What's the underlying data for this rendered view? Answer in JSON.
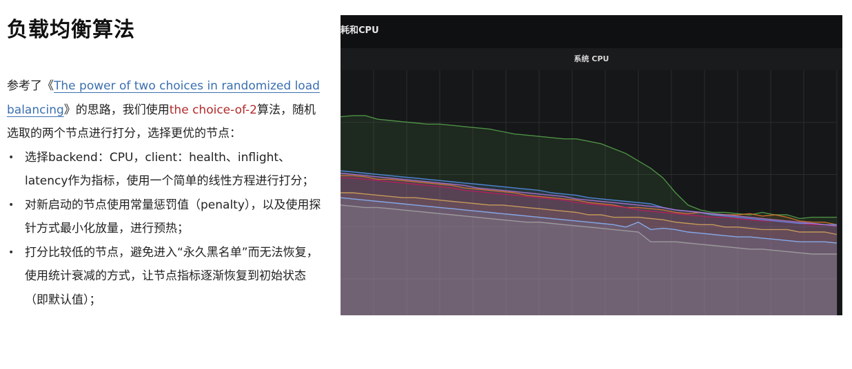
{
  "slide": {
    "title": "负载均衡算法",
    "intro": {
      "prefix": "参考了《",
      "link_text": "The power of two choices in randomized load balancing",
      "after_link": "》的思路，我们使用",
      "highlight": "the choice-of-2",
      "suffix": "算法，随机选取的两个节点进行打分，选择更优的节点："
    },
    "bullets": [
      "选择backend：CPU，client：health、inflight、latency作为指标，使用一个简单的线性方程进行打分；",
      "对新启动的节点使用常量惩罚值（penalty），以及使用探针方式最小化放量，进行预热；",
      "打分比较低的节点，避免进入“永久黑名单”而无法恢复，使用统计衰减的方式，让节点指标逐渐恢复到初始状态（即默认值）；"
    ]
  },
  "screenshot": {
    "panel_title": "耗和CPU",
    "chart_title": "系统 CPU"
  },
  "colors": {
    "link": "#3a6fb0",
    "highlight": "#b22a2a",
    "dashboard_bg": "#161719"
  },
  "chart_data": {
    "type": "line",
    "title": "系统 CPU",
    "xlabel": "",
    "ylabel": "",
    "grid": true,
    "ylim": [
      0,
      100
    ],
    "x": [
      0,
      1,
      2,
      3,
      4,
      5,
      6,
      7,
      8,
      9,
      10,
      11,
      12,
      13,
      14,
      15,
      16,
      17,
      18,
      19,
      20,
      21,
      22,
      23,
      24,
      25,
      26,
      27,
      28,
      29,
      30,
      31,
      32,
      33,
      34,
      35,
      36,
      37,
      38,
      39,
      40
    ],
    "series": [
      {
        "color": "#56a64b",
        "values": [
          81,
          81.5,
          81.5,
          80,
          79.5,
          79,
          78.5,
          78,
          78,
          77.5,
          77,
          76.5,
          76,
          75,
          74,
          73.5,
          73,
          72.5,
          72,
          72,
          71,
          70,
          68,
          66,
          63,
          60,
          56,
          50,
          45,
          43,
          42,
          42,
          41.5,
          41,
          42,
          41,
          41,
          39.5,
          40,
          40,
          40
        ]
      },
      {
        "color": "#d6a85a",
        "values": [
          50,
          50,
          49.5,
          49,
          48.5,
          48,
          48,
          47.5,
          47,
          46.5,
          46,
          45.5,
          45,
          45,
          44.5,
          44,
          43.5,
          43,
          42.5,
          42,
          41,
          41,
          40,
          40,
          40,
          39.5,
          39,
          38,
          37.5,
          37,
          37,
          36,
          36,
          35.5,
          35,
          35,
          35,
          34,
          34,
          34,
          33
        ]
      },
      {
        "color": "#e0752d",
        "values": [
          57,
          57,
          56.5,
          55.5,
          55.5,
          55,
          54.5,
          54,
          53.5,
          53,
          52,
          51.5,
          51,
          50.5,
          50,
          49,
          48.5,
          48,
          47.5,
          47,
          46,
          45.5,
          45,
          44,
          44,
          43.5,
          43,
          42,
          41.5,
          42,
          41,
          41,
          41,
          41.5,
          40.5,
          41,
          40,
          38.5,
          38,
          38,
          37
        ]
      },
      {
        "color": "#bf1b5d",
        "values": [
          56,
          56,
          55.5,
          55,
          54.5,
          54,
          53.5,
          53,
          52.5,
          52,
          51,
          50.5,
          50,
          49.5,
          49,
          48.5,
          48,
          47.5,
          47,
          46,
          45.5,
          45,
          44.5,
          44,
          43,
          42.5,
          42,
          41.5,
          41,
          40.5,
          40,
          40,
          39.5,
          39,
          38.5,
          38.5,
          38,
          37.5,
          37,
          37,
          36.5
        ]
      },
      {
        "color": "#5794f2",
        "values": [
          59,
          58.5,
          58,
          57.5,
          57,
          56.5,
          56,
          55.5,
          55,
          54.5,
          54,
          53.5,
          53,
          52.5,
          52,
          51.5,
          51,
          50,
          49.5,
          49,
          48,
          47.5,
          47,
          46.5,
          46,
          45.5,
          44,
          43,
          42.5,
          42,
          41,
          40.5,
          40,
          39.5,
          39,
          38.5,
          38,
          37.5,
          37.5,
          37,
          37
        ]
      },
      {
        "color": "#b877d9",
        "values": [
          58,
          57.5,
          57,
          56.5,
          56,
          55.5,
          55,
          54.5,
          54,
          53.5,
          53,
          52,
          51.5,
          51,
          50.5,
          50,
          49.5,
          49,
          48.5,
          47.5,
          47,
          46.5,
          46,
          45.5,
          45,
          44.5,
          44,
          43,
          42.5,
          42,
          41.5,
          41,
          40.5,
          40,
          39.5,
          39,
          38.5,
          38,
          37.5,
          37,
          36.5
        ]
      },
      {
        "color": "#8ab8ff",
        "values": [
          48,
          47.5,
          47,
          46.5,
          46,
          45.5,
          45,
          44.5,
          44,
          43.5,
          43,
          42.5,
          42,
          41.5,
          41,
          40.5,
          40,
          39.5,
          39,
          38.5,
          38,
          37.5,
          37,
          36,
          38,
          35,
          35.5,
          35,
          34,
          33.5,
          33,
          32.5,
          32,
          32,
          31.5,
          31,
          30.5,
          30,
          30,
          30,
          29.5
        ]
      },
      {
        "color": "#a5a5a5",
        "values": [
          45,
          44.5,
          44,
          44,
          43.5,
          43,
          42.5,
          42,
          41.5,
          41,
          40.5,
          40,
          39.5,
          39,
          38.5,
          38,
          38,
          37.5,
          37,
          36.5,
          36,
          35.5,
          35,
          34.5,
          34,
          30,
          30,
          30,
          29.5,
          29,
          28.5,
          28,
          27.5,
          27,
          27,
          26.5,
          26,
          25.5,
          25,
          25,
          25
        ]
      }
    ]
  }
}
